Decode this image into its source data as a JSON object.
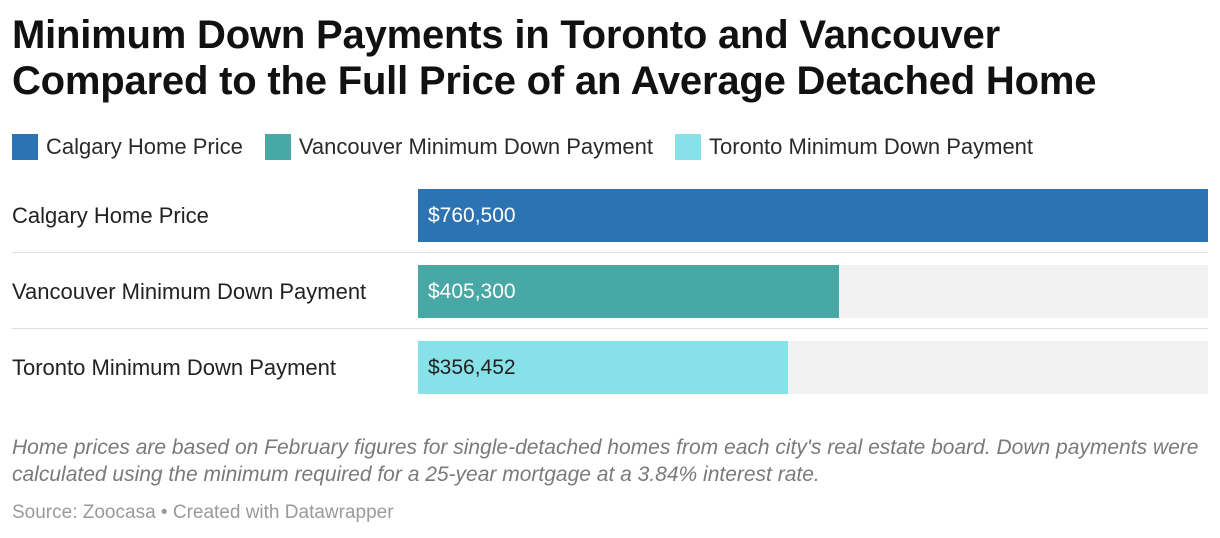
{
  "chart_data": {
    "type": "bar",
    "orientation": "horizontal",
    "title": "Minimum Down Payments in Toronto and Vancouver Compared to the Full Price of an Average Detached Home",
    "categories": [
      "Calgary Home Price",
      "Vancouver Minimum Down Payment",
      "Toronto Minimum Down Payment"
    ],
    "values": [
      760500,
      405300,
      356452
    ],
    "value_labels": [
      "$760,500",
      "$405,300",
      "$356,452"
    ],
    "colors": [
      "#2b73b3",
      "#48a8a6",
      "#87e1e8"
    ],
    "value_label_colors": [
      "#ffffff",
      "#ffffff",
      "#222222"
    ],
    "xlim": [
      0,
      760500
    ],
    "grid": false,
    "legend": {
      "placement": "top-left",
      "entries": [
        {
          "label": "Calgary Home Price",
          "color": "#2b73b3"
        },
        {
          "label": "Vancouver Minimum Down Payment",
          "color": "#48a8a6"
        },
        {
          "label": "Toronto Minimum Down Payment",
          "color": "#87e1e8"
        }
      ]
    },
    "notes": "Home prices are based on February figures for single-detached homes from each city's real estate board. Down payments were calculated using the minimum required for a 25-year mortgage at a 3.84% interest rate.",
    "source": "Source: Zoocasa • Created with Datawrapper"
  }
}
